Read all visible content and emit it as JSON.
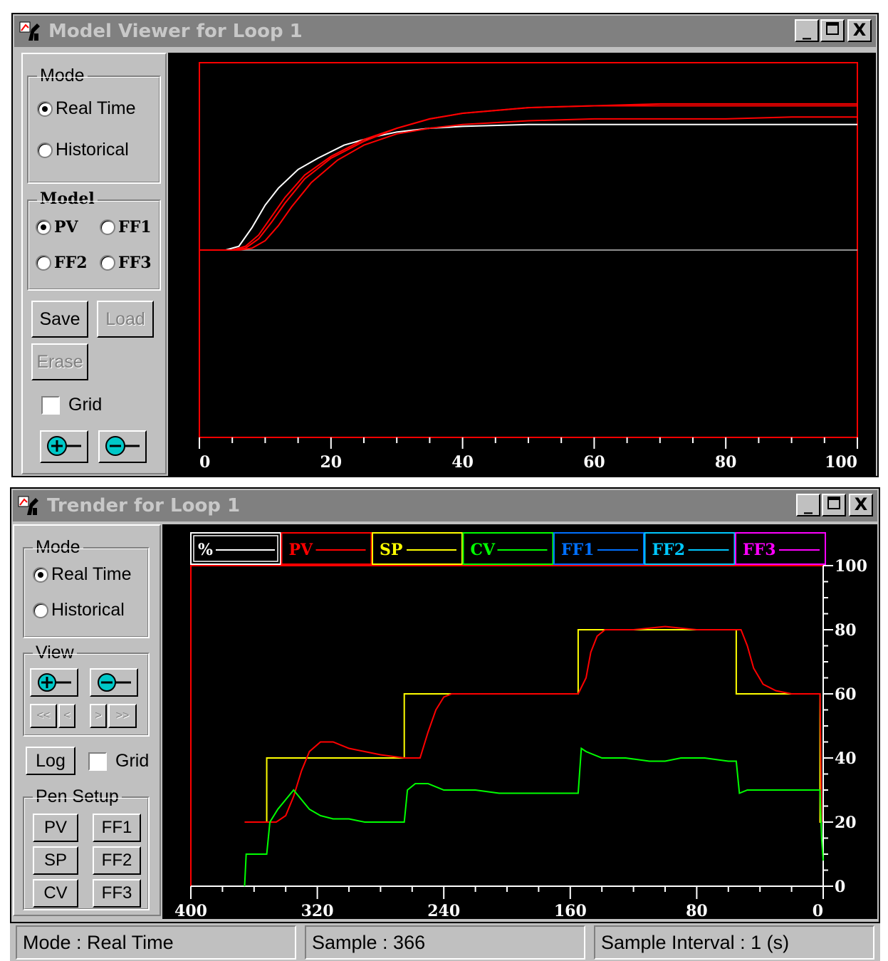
{
  "model_viewer": {
    "title": "Model Viewer for Loop 1",
    "window_buttons": {
      "minimize": "_",
      "maximize": "□",
      "close": "X"
    },
    "mode_group": {
      "label": "Mode",
      "options": [
        "Real Time",
        "Historical"
      ],
      "selected": "Real Time"
    },
    "model_group": {
      "label": "Model",
      "options": [
        "PV",
        "FF1",
        "FF2",
        "FF3"
      ],
      "selected": "PV"
    },
    "buttons": {
      "save": "Save",
      "load": "Load",
      "erase": "Erase"
    },
    "grid_label": "Grid",
    "grid_checked": false,
    "chart_data": {
      "type": "line",
      "x_ticks": [
        "0",
        "20",
        "40",
        "60",
        "80",
        "100"
      ],
      "xlim": [
        0,
        100
      ],
      "ylim": [
        -1,
        1
      ],
      "grid": false,
      "series": [
        {
          "color": "#ffffff",
          "x": [
            0,
            4,
            6,
            8,
            10,
            12,
            15,
            18,
            22,
            26,
            30,
            35,
            40,
            50,
            60,
            70,
            80,
            90,
            100
          ],
          "y": [
            0,
            0,
            0.02,
            0.12,
            0.24,
            0.33,
            0.43,
            0.49,
            0.56,
            0.6,
            0.63,
            0.65,
            0.66,
            0.67,
            0.67,
            0.67,
            0.67,
            0.67,
            0.67
          ]
        },
        {
          "color": "#ff0000",
          "x": [
            0,
            5,
            7,
            9,
            11,
            13,
            16,
            20,
            25,
            30,
            35,
            40,
            50,
            60,
            70,
            80,
            90,
            100
          ],
          "y": [
            0,
            0,
            0.02,
            0.08,
            0.18,
            0.28,
            0.4,
            0.5,
            0.59,
            0.65,
            0.7,
            0.73,
            0.76,
            0.77,
            0.77,
            0.77,
            0.77,
            0.77
          ]
        },
        {
          "color": "#ff0000",
          "x": [
            0,
            5,
            7,
            9,
            11,
            13,
            16,
            20,
            25,
            30,
            35,
            40,
            50,
            60,
            70,
            80,
            90,
            100
          ],
          "y": [
            0,
            0,
            0.01,
            0.06,
            0.15,
            0.25,
            0.38,
            0.49,
            0.58,
            0.65,
            0.7,
            0.73,
            0.76,
            0.77,
            0.78,
            0.78,
            0.78,
            0.78
          ]
        },
        {
          "color": "#ff0000",
          "x": [
            0,
            6,
            8,
            10,
            12,
            14,
            17,
            21,
            25,
            30,
            35,
            40,
            50,
            60,
            70,
            80,
            90,
            100
          ],
          "y": [
            0,
            0,
            0.01,
            0.05,
            0.13,
            0.23,
            0.36,
            0.48,
            0.56,
            0.62,
            0.65,
            0.67,
            0.69,
            0.7,
            0.7,
            0.7,
            0.71,
            0.71
          ]
        }
      ]
    }
  },
  "trender": {
    "title": "Trender for Loop 1",
    "window_buttons": {
      "minimize": "_",
      "maximize": "□",
      "close": "X"
    },
    "mode_group": {
      "label": "Mode",
      "options": [
        "Real Time",
        "Historical"
      ],
      "selected": "Real Time"
    },
    "view_group": {
      "label": "View",
      "nav": [
        "<<",
        "<",
        ">",
        ">>"
      ]
    },
    "log_label": "Log",
    "grid_label": "Grid",
    "grid_checked": false,
    "pen_setup": {
      "label": "Pen Setup",
      "buttons": [
        "PV",
        "FF1",
        "SP",
        "FF2",
        "CV",
        "FF3"
      ]
    },
    "legend": [
      {
        "label": "%",
        "color": "#ffffff"
      },
      {
        "label": "PV",
        "color": "#ff0000"
      },
      {
        "label": "SP",
        "color": "#ffff00"
      },
      {
        "label": "CV",
        "color": "#00ff00"
      },
      {
        "label": "FF1",
        "color": "#0070ff"
      },
      {
        "label": "FF2",
        "color": "#00c8ff"
      },
      {
        "label": "FF3",
        "color": "#ff00ff"
      }
    ],
    "chart_data": {
      "type": "line",
      "x_ticks": [
        "400",
        "320",
        "240",
        "160",
        "80",
        "0"
      ],
      "y_ticks": [
        "100",
        "80",
        "60",
        "40",
        "20",
        "0"
      ],
      "xlim": [
        400,
        0
      ],
      "ylim": [
        0,
        100
      ],
      "grid": false,
      "series": [
        {
          "name": "SP",
          "color": "#ffff00",
          "points": [
            [
              366,
              20
            ],
            [
              352,
              20
            ],
            [
              352,
              40
            ],
            [
              265,
              40
            ],
            [
              265,
              60
            ],
            [
              155,
              60
            ],
            [
              155,
              80
            ],
            [
              55,
              80
            ],
            [
              55,
              60
            ],
            [
              2,
              60
            ],
            [
              2,
              20
            ],
            [
              1,
              20
            ]
          ]
        },
        {
          "name": "PV",
          "color": "#ff0000",
          "points": [
            [
              366,
              20
            ],
            [
              346,
              20
            ],
            [
              340,
              22
            ],
            [
              335,
              28
            ],
            [
              330,
              36
            ],
            [
              325,
              42
            ],
            [
              318,
              45
            ],
            [
              310,
              45
            ],
            [
              300,
              43
            ],
            [
              290,
              42
            ],
            [
              280,
              41
            ],
            [
              265,
              40
            ],
            [
              255,
              40
            ],
            [
              250,
              48
            ],
            [
              245,
              55
            ],
            [
              240,
              59
            ],
            [
              235,
              60
            ],
            [
              200,
              60
            ],
            [
              165,
              60
            ],
            [
              155,
              60
            ],
            [
              150,
              65
            ],
            [
              147,
              73
            ],
            [
              143,
              78
            ],
            [
              138,
              80
            ],
            [
              120,
              80
            ],
            [
              100,
              81
            ],
            [
              80,
              80
            ],
            [
              60,
              80
            ],
            [
              52,
              80
            ],
            [
              48,
              75
            ],
            [
              44,
              68
            ],
            [
              38,
              63
            ],
            [
              30,
              61
            ],
            [
              20,
              60
            ],
            [
              2,
              60
            ],
            [
              1,
              20
            ]
          ]
        },
        {
          "name": "CV",
          "color": "#00ff00",
          "points": [
            [
              366,
              0
            ],
            [
              365,
              10
            ],
            [
              352,
              10
            ],
            [
              350,
              20
            ],
            [
              345,
              24
            ],
            [
              340,
              27
            ],
            [
              335,
              30
            ],
            [
              330,
              27
            ],
            [
              325,
              24
            ],
            [
              318,
              22
            ],
            [
              310,
              21
            ],
            [
              300,
              21
            ],
            [
              290,
              20
            ],
            [
              265,
              20
            ],
            [
              263,
              30
            ],
            [
              258,
              32
            ],
            [
              250,
              32
            ],
            [
              240,
              30
            ],
            [
              220,
              30
            ],
            [
              205,
              29
            ],
            [
              190,
              29
            ],
            [
              185,
              29
            ],
            [
              155,
              29
            ],
            [
              153,
              43
            ],
            [
              150,
              42
            ],
            [
              140,
              40
            ],
            [
              125,
              40
            ],
            [
              110,
              39
            ],
            [
              100,
              39
            ],
            [
              90,
              40
            ],
            [
              75,
              40
            ],
            [
              60,
              39
            ],
            [
              55,
              39
            ],
            [
              53,
              29
            ],
            [
              48,
              30
            ],
            [
              30,
              30
            ],
            [
              15,
              30
            ],
            [
              2,
              30
            ],
            [
              1,
              15
            ],
            [
              0,
              8
            ]
          ]
        }
      ]
    }
  },
  "status_bar": {
    "mode": "Mode : Real Time",
    "sample": "Sample : 366",
    "interval": "Sample Interval : 1 (s)"
  }
}
